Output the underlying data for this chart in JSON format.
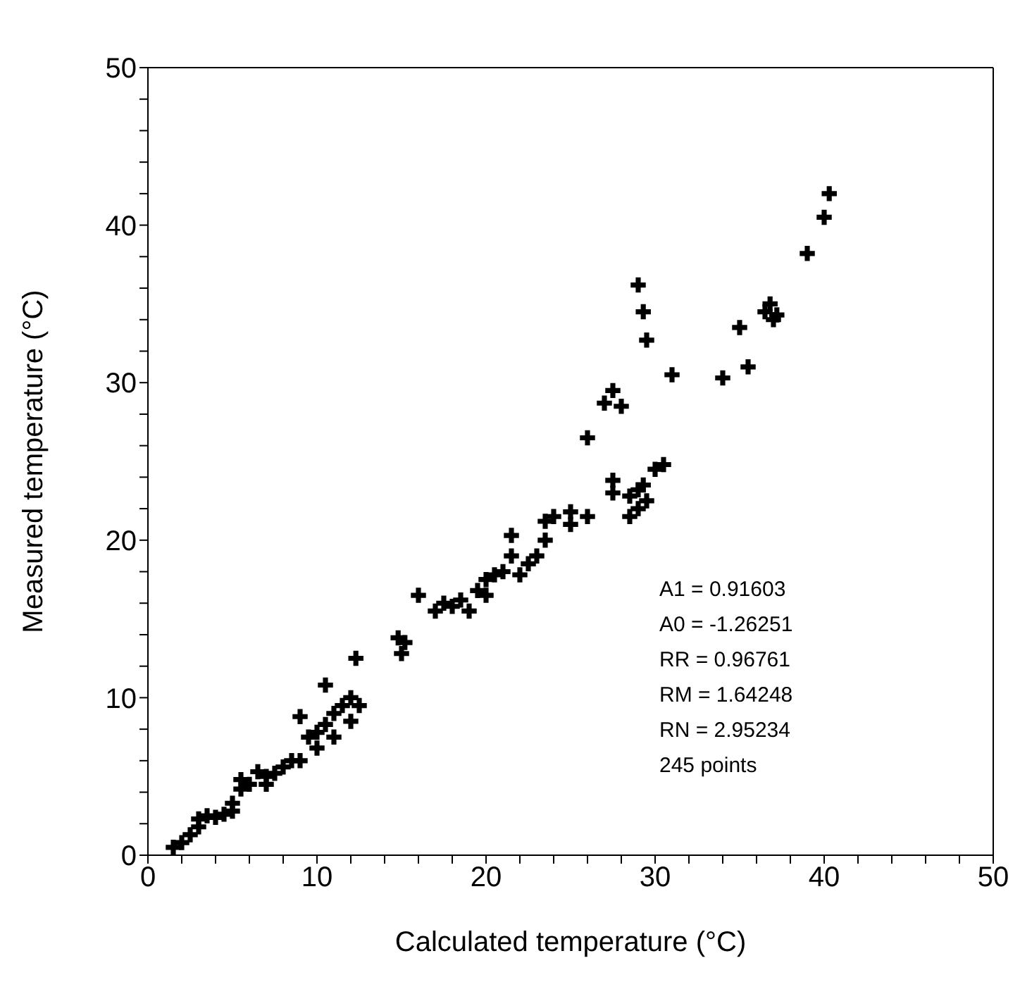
{
  "chart_data": {
    "type": "scatter",
    "xlabel": "Calculated temperature (°C)",
    "ylabel": "Measured temperature (°C)",
    "xlim": [
      0,
      50
    ],
    "ylim": [
      0,
      50
    ],
    "xticks": [
      0,
      {
        "value": 2,
        "label": null
      },
      {
        "value": 4,
        "label": null
      },
      {
        "value": 6,
        "label": null
      },
      {
        "value": 8,
        "label": null
      },
      10,
      {
        "value": 12,
        "label": null
      },
      {
        "value": 14,
        "label": null
      },
      {
        "value": 16,
        "label": null
      },
      {
        "value": 18,
        "label": null
      },
      20,
      {
        "value": 22,
        "label": null
      },
      {
        "value": 24,
        "label": null
      },
      {
        "value": 26,
        "label": null
      },
      {
        "value": 28,
        "label": null
      },
      30,
      {
        "value": 32,
        "label": null
      },
      {
        "value": 34,
        "label": null
      },
      {
        "value": 36,
        "label": null
      },
      {
        "value": 38,
        "label": null
      },
      40,
      {
        "value": 42,
        "label": null
      },
      {
        "value": 44,
        "label": null
      },
      {
        "value": 46,
        "label": null
      },
      {
        "value": 48,
        "label": null
      },
      50
    ],
    "yticks": [
      0,
      {
        "value": 2,
        "label": null
      },
      {
        "value": 4,
        "label": null
      },
      {
        "value": 6,
        "label": null
      },
      {
        "value": 8,
        "label": null
      },
      10,
      {
        "value": 12,
        "label": null
      },
      {
        "value": 14,
        "label": null
      },
      {
        "value": 16,
        "label": null
      },
      {
        "value": 18,
        "label": null
      },
      20,
      {
        "value": 22,
        "label": null
      },
      {
        "value": 24,
        "label": null
      },
      {
        "value": 26,
        "label": null
      },
      {
        "value": 28,
        "label": null
      },
      30,
      {
        "value": 32,
        "label": null
      },
      {
        "value": 34,
        "label": null
      },
      {
        "value": 36,
        "label": null
      },
      {
        "value": 38,
        "label": null
      },
      40,
      {
        "value": 42,
        "label": null
      },
      {
        "value": 44,
        "label": null
      },
      {
        "value": 46,
        "label": null
      },
      {
        "value": 48,
        "label": null
      },
      50
    ],
    "marker": "cross",
    "x": [
      1.5,
      2,
      2.5,
      3,
      3,
      3.5,
      4,
      4.5,
      5,
      5,
      5.5,
      5.5,
      6,
      6.5,
      7,
      7,
      7.5,
      8,
      8.5,
      9,
      9,
      9.5,
      10,
      10,
      10.5,
      10.5,
      11,
      11.5,
      12,
      12.3,
      12.5,
      11,
      12,
      14.8,
      15,
      15.2,
      17,
      17.5,
      18,
      18.5,
      19,
      19.5,
      20,
      20,
      20.5,
      21,
      21.5,
      21.5,
      22,
      22.5,
      23,
      23.5,
      23.5,
      24,
      25,
      25,
      26,
      27.5,
      27.5,
      28.5,
      28.5,
      29,
      29,
      29.5,
      30,
      30.5,
      29.3,
      27,
      27.5,
      29,
      29.3,
      29.5,
      34,
      35,
      35.5,
      36.5,
      36.8,
      37,
      37.2,
      39,
      40,
      40.3,
      16,
      26,
      28,
      31
    ],
    "series": [
      {
        "color": "#000000",
        "values": [
          0.5,
          0.8,
          1.3,
          2.3,
          1.8,
          2.5,
          2.4,
          2.6,
          2.8,
          3.3,
          4.2,
          4.8,
          4.5,
          5.3,
          5,
          4.5,
          5.2,
          5.6,
          6,
          6,
          8.8,
          7.5,
          7.8,
          6.8,
          10.8,
          8.3,
          9,
          9.5,
          10,
          12.5,
          9.5,
          7.5,
          8.5,
          13.8,
          12.8,
          13.5,
          15.5,
          16,
          15.8,
          16.2,
          15.5,
          16.8,
          17.5,
          16.5,
          17.8,
          18,
          20.3,
          19,
          17.8,
          18.5,
          19,
          20,
          21.2,
          21.5,
          21,
          21.8,
          21.5,
          23.8,
          23,
          22.8,
          21.5,
          22,
          23.2,
          22.5,
          24.5,
          24.8,
          23.5,
          28.7,
          29.5,
          36.2,
          34.5,
          32.7,
          30.3,
          33.5,
          31,
          34.5,
          35,
          34,
          34.3,
          38.2,
          40.5,
          42,
          16.5,
          26.5,
          28.5,
          30.5
        ]
      }
    ],
    "annotations": [
      "A1 = 0.91603",
      "A0 = -1.26251",
      "RR = 0.96761",
      "RM = 1.64248",
      "RN = 2.95234",
      "245 points"
    ]
  }
}
